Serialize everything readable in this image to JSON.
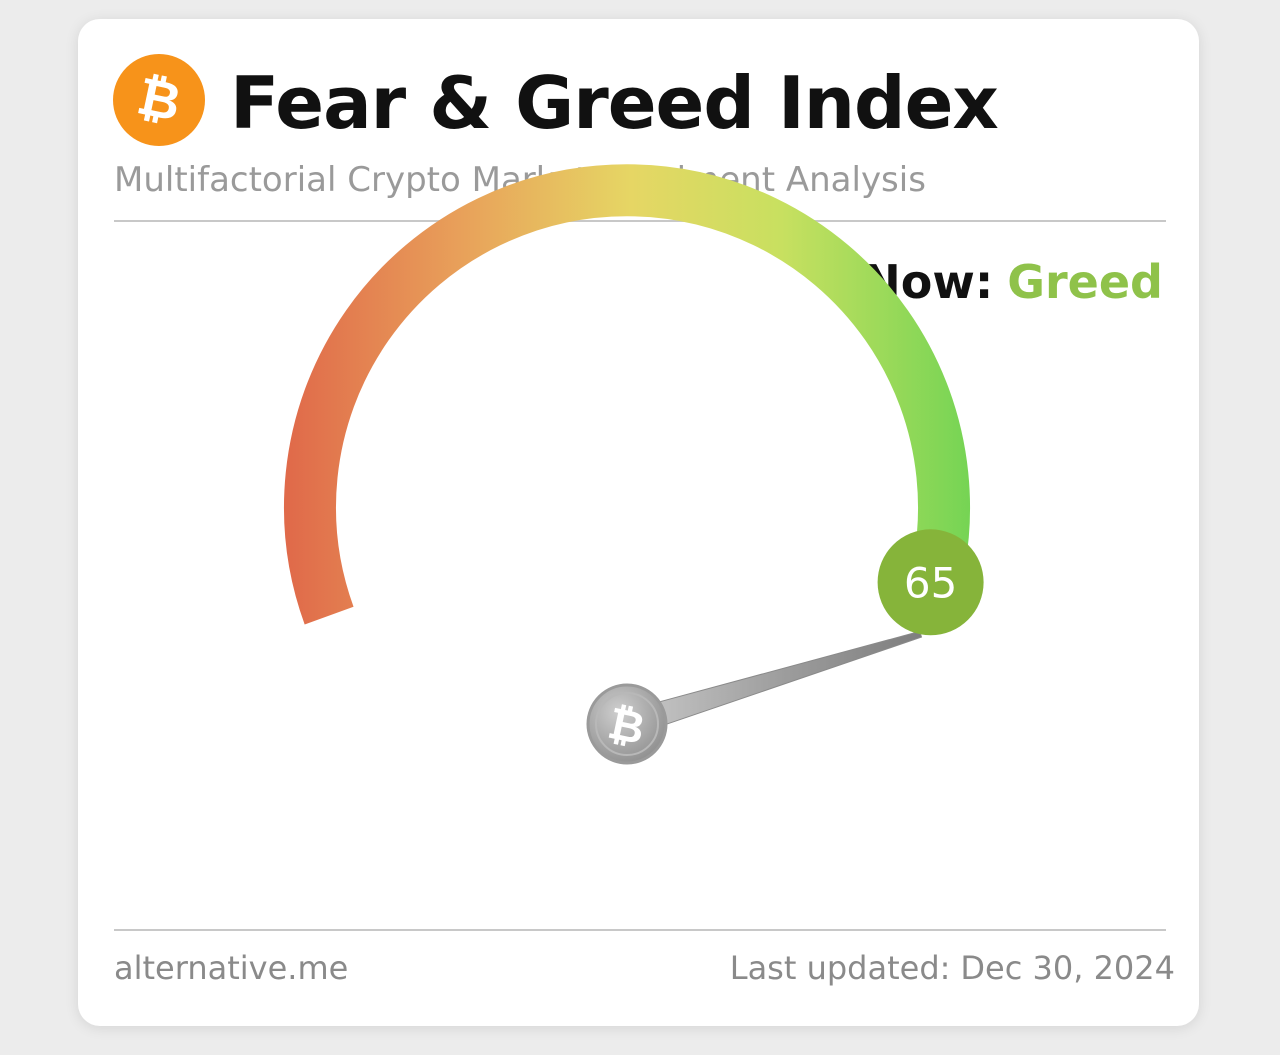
{
  "header": {
    "logo_icon": "bitcoin-icon",
    "title": "Fear & Greed Index",
    "subtitle": "Multifactorial Crypto Market Sentiment Analysis"
  },
  "status": {
    "now_label": "Now:",
    "now_value": "Greed",
    "now_color": "#8fc24a"
  },
  "gauge": {
    "value": 65,
    "value_text": "65",
    "min": 0,
    "max": 100,
    "badge_color": "#86b43a",
    "gradient_colors": [
      "#e06a4a",
      "#e8a05a",
      "#e6d664",
      "#c8e060",
      "#74d454"
    ],
    "needle_hub_icon": "bitcoin-icon"
  },
  "footer": {
    "source": "alternative.me",
    "updated_label": "Last updated:",
    "updated_date": "Dec 30, 2024"
  }
}
